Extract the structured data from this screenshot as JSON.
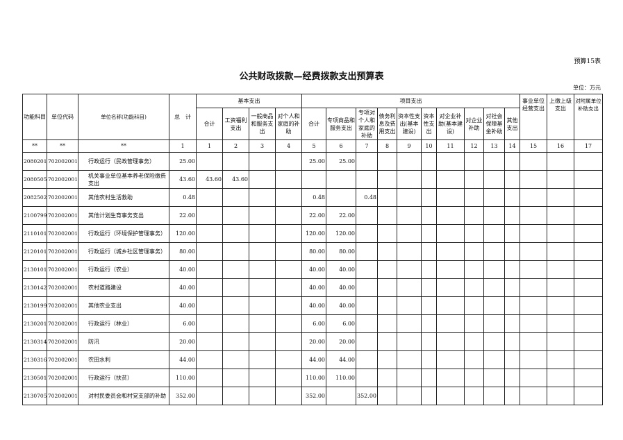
{
  "form_number": "预算15表",
  "title": "公共财政拨款—经费拨款支出预算表",
  "unit_label": "单位：万元",
  "headers": {
    "function_subject": "功能科目",
    "unit_code": "单位代码",
    "unit_name": "单位名称(功能科目)",
    "total": "总　计",
    "basic_group": "基本支出",
    "project_group": "项目支出",
    "basic": [
      "合计",
      "工资福利支出",
      "一般商品和服务支出",
      "对个人和家庭的补助"
    ],
    "project": [
      "合计",
      "专项商品和服务支出",
      "专项对个人和家庭的补助",
      "债务利息及费用支出",
      "资本性支出(基本建设)",
      "资本性支出",
      "对企业补助(基本建设)",
      "对企业补助",
      "对社会保障基金补助",
      "其他支出"
    ],
    "other": [
      "事业单位经营支出",
      "上缴上级支出",
      "对附属单位补助支出"
    ]
  },
  "index_row": [
    "**",
    "**",
    "**",
    "1",
    "1",
    "2",
    "3",
    "4",
    "5",
    "6",
    "7",
    "8",
    "9",
    "10",
    "11",
    "12",
    "13",
    "14",
    "15",
    "16",
    "17"
  ],
  "rows": [
    {
      "code": "2080201",
      "unit": "702002001",
      "name": "行政运行（民政管理事务）",
      "total": "25.00",
      "values": [
        "",
        "",
        "",
        "",
        "25.00",
        "25.00",
        "",
        "",
        "",
        "",
        "",
        "",
        "",
        "",
        "",
        "",
        ""
      ]
    },
    {
      "code": "2080505",
      "unit": "702002001",
      "name": "机关事业单位基本养老保险缴费支出",
      "total": "43.60",
      "values": [
        "43.60",
        "43.60",
        "",
        "",
        "",
        "",
        "",
        "",
        "",
        "",
        "",
        "",
        "",
        "",
        "",
        "",
        ""
      ]
    },
    {
      "code": "2082502",
      "unit": "702002001",
      "name": "其他农村生活救助",
      "total": "0.48",
      "values": [
        "",
        "",
        "",
        "",
        "0.48",
        "",
        "0.48",
        "",
        "",
        "",
        "",
        "",
        "",
        "",
        "",
        "",
        ""
      ]
    },
    {
      "code": "2100799",
      "unit": "702002001",
      "name": "其他计划生育事务支出",
      "total": "22.00",
      "values": [
        "",
        "",
        "",
        "",
        "22.00",
        "22.00",
        "",
        "",
        "",
        "",
        "",
        "",
        "",
        "",
        "",
        "",
        ""
      ]
    },
    {
      "code": "2110101",
      "unit": "702002001",
      "name": "行政运行（环境保护管理事务）",
      "total": "120.00",
      "values": [
        "",
        "",
        "",
        "",
        "120.00",
        "120.00",
        "",
        "",
        "",
        "",
        "",
        "",
        "",
        "",
        "",
        "",
        ""
      ]
    },
    {
      "code": "2120101",
      "unit": "702002001",
      "name": "行政运行（城乡社区管理事务）",
      "total": "80.00",
      "values": [
        "",
        "",
        "",
        "",
        "80.00",
        "80.00",
        "",
        "",
        "",
        "",
        "",
        "",
        "",
        "",
        "",
        "",
        ""
      ]
    },
    {
      "code": "2130101",
      "unit": "702002001",
      "name": "行政运行（农业）",
      "total": "40.00",
      "values": [
        "",
        "",
        "",
        "",
        "40.00",
        "40.00",
        "",
        "",
        "",
        "",
        "",
        "",
        "",
        "",
        "",
        "",
        ""
      ]
    },
    {
      "code": "2130142",
      "unit": "702002001",
      "name": "农村道路建设",
      "total": "40.00",
      "values": [
        "",
        "",
        "",
        "",
        "40.00",
        "40.00",
        "",
        "",
        "",
        "",
        "",
        "",
        "",
        "",
        "",
        "",
        ""
      ]
    },
    {
      "code": "2130199",
      "unit": "702002001",
      "name": "其他农业支出",
      "total": "40.00",
      "values": [
        "",
        "",
        "",
        "",
        "40.00",
        "40.00",
        "",
        "",
        "",
        "",
        "",
        "",
        "",
        "",
        "",
        "",
        ""
      ]
    },
    {
      "code": "2130201",
      "unit": "702002001",
      "name": "行政运行（林业）",
      "total": "6.00",
      "values": [
        "",
        "",
        "",
        "",
        "6.00",
        "6.00",
        "",
        "",
        "",
        "",
        "",
        "",
        "",
        "",
        "",
        "",
        ""
      ]
    },
    {
      "code": "2130314",
      "unit": "702002001",
      "name": "防汛",
      "total": "20.00",
      "values": [
        "",
        "",
        "",
        "",
        "20.00",
        "20.00",
        "",
        "",
        "",
        "",
        "",
        "",
        "",
        "",
        "",
        "",
        ""
      ]
    },
    {
      "code": "2130316",
      "unit": "702002001",
      "name": "农田水利",
      "total": "44.00",
      "values": [
        "",
        "",
        "",
        "",
        "44.00",
        "44.00",
        "",
        "",
        "",
        "",
        "",
        "",
        "",
        "",
        "",
        "",
        ""
      ]
    },
    {
      "code": "2130501",
      "unit": "702002001",
      "name": "行政运行（扶贫）",
      "total": "110.00",
      "values": [
        "",
        "",
        "",
        "",
        "110.00",
        "110.00",
        "",
        "",
        "",
        "",
        "",
        "",
        "",
        "",
        "",
        "",
        ""
      ]
    },
    {
      "code": "2130705",
      "unit": "702002001",
      "name": "对村民委员会和村党支部的补助",
      "total": "352.00",
      "values": [
        "",
        "",
        "",
        "",
        "352.00",
        "",
        "352.00",
        "",
        "",
        "",
        "",
        "",
        "",
        "",
        "",
        "",
        ""
      ]
    }
  ]
}
